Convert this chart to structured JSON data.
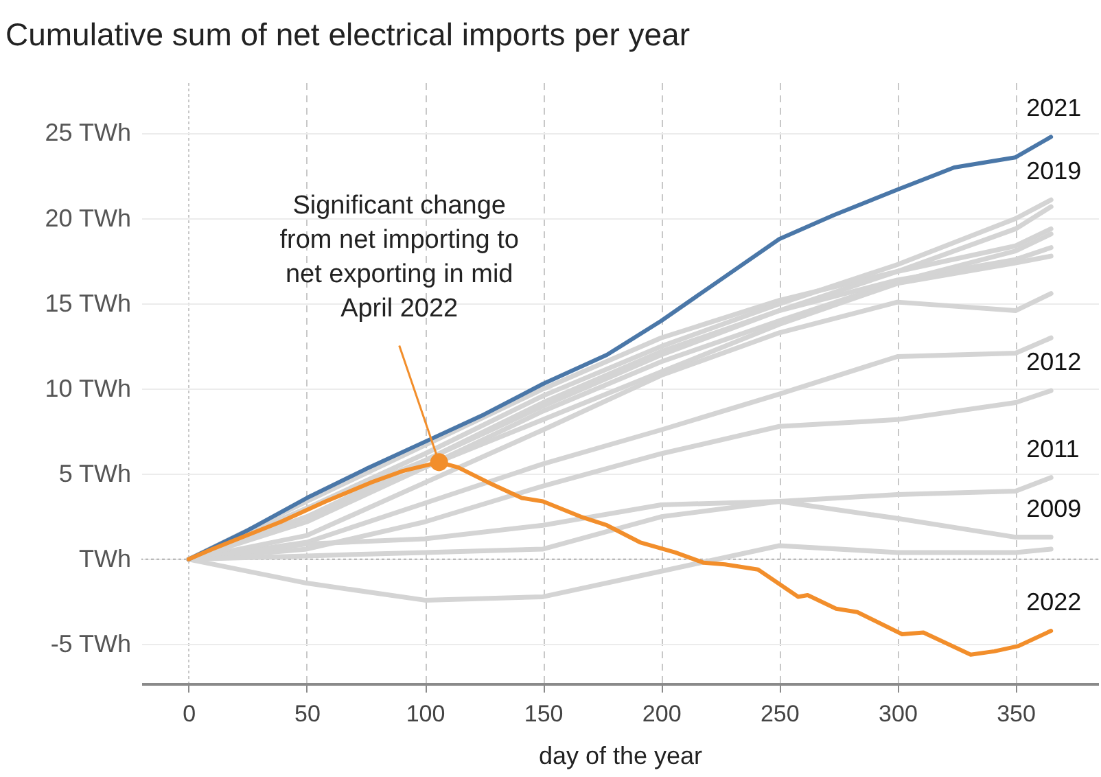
{
  "chart_data": {
    "type": "line",
    "title": "Cumulative sum of net electrical imports per year",
    "xlabel": "day of the year",
    "x": [
      0,
      50,
      100,
      150,
      200,
      250,
      300,
      350,
      365
    ],
    "xlim": [
      -20,
      385
    ],
    "xticks": [
      0,
      50,
      100,
      150,
      200,
      250,
      300,
      350
    ],
    "ylim": [
      -7.3,
      28
    ],
    "yticks": [
      {
        "value": -5,
        "label": "-5 TWh"
      },
      {
        "value": 0,
        "label": "TWh"
      },
      {
        "value": 5,
        "label": "5 TWh"
      },
      {
        "value": 10,
        "label": "10 TWh"
      },
      {
        "value": 15,
        "label": "15 TWh"
      },
      {
        "value": 20,
        "label": "20 TWh"
      },
      {
        "value": 25,
        "label": "25 TWh"
      }
    ],
    "grid": true,
    "ref_lines": [
      {
        "axis": "y",
        "value": 0,
        "color": "#b0b0b0",
        "line_style": "dotted"
      }
    ],
    "series": [
      {
        "color": "#d4d4d4",
        "values": [
          0,
          2.5,
          5.8,
          9.2,
          12.2,
          14.6,
          16.9,
          19.4,
          20.7
        ]
      },
      {
        "color": "#d4d4d4",
        "values": [
          0,
          3.4,
          6.7,
          10.0,
          13.0,
          15.2,
          16.9,
          18.4,
          19.4
        ]
      },
      {
        "color": "#d4d4d4",
        "values": [
          0,
          2.5,
          5.4,
          8.7,
          11.6,
          14.0,
          16.3,
          18.1,
          19.1
        ]
      },
      {
        "color": "#d4d4d4",
        "values": [
          0,
          3.0,
          5.8,
          9.0,
          12.0,
          14.6,
          16.4,
          17.6,
          18.3
        ]
      },
      {
        "color": "#d4d4d4",
        "values": [
          0,
          2.2,
          5.4,
          8.2,
          11.0,
          13.8,
          16.2,
          17.4,
          17.8
        ]
      },
      {
        "color": "#d4d4d4",
        "values": [
          0,
          1.4,
          4.5,
          7.6,
          10.8,
          13.3,
          15.1,
          14.6,
          15.6
        ]
      },
      {
        "color": "#d4d4d4",
        "values": [
          0,
          1.0,
          3.3,
          5.6,
          7.6,
          9.7,
          11.9,
          12.1,
          13.0
        ]
      },
      {
        "color": "#d4d4d4",
        "values": [
          0,
          -1.4,
          -2.4,
          -2.2,
          -0.7,
          0.8,
          0.4,
          0.4,
          0.6
        ]
      },
      {
        "name": "2019",
        "color": "#d4d4d4",
        "values": [
          0,
          3.0,
          6.2,
          9.6,
          12.5,
          15.0,
          17.3,
          20.0,
          21.1
        ]
      },
      {
        "name": "2012",
        "color": "#d4d4d4",
        "values": [
          0,
          0.6,
          2.2,
          4.3,
          6.2,
          7.8,
          8.2,
          9.2,
          9.9
        ]
      },
      {
        "name": "2011",
        "color": "#d4d4d4",
        "values": [
          0,
          0.9,
          1.2,
          2.0,
          3.2,
          3.4,
          3.8,
          4.0,
          4.8
        ]
      },
      {
        "name": "2009",
        "color": "#d4d4d4",
        "values": [
          0,
          0.2,
          0.4,
          0.6,
          2.5,
          3.4,
          2.4,
          1.3,
          1.3
        ]
      },
      {
        "name": "2021",
        "color": "#4a77a8",
        "x": [
          0,
          25,
          50,
          75,
          100,
          125,
          150,
          177,
          200,
          225,
          250,
          273,
          300,
          324,
          350,
          365
        ],
        "values": [
          0,
          1.7,
          3.6,
          5.3,
          6.9,
          8.5,
          10.3,
          12.0,
          14.0,
          16.4,
          18.8,
          20.2,
          21.7,
          23.0,
          23.6,
          24.8
        ]
      },
      {
        "name": "2022",
        "color": "#f28e2b",
        "x": [
          0,
          10,
          39,
          58,
          77,
          91,
          106,
          114,
          127,
          141,
          150,
          166,
          177,
          191,
          206,
          218,
          227,
          241,
          258,
          262,
          274,
          283,
          302,
          311,
          331,
          341,
          351,
          365
        ],
        "values": [
          0,
          0.6,
          2.2,
          3.4,
          4.5,
          5.2,
          5.7,
          5.4,
          4.5,
          3.6,
          3.4,
          2.5,
          2.0,
          1.0,
          0.4,
          -0.2,
          -0.3,
          -0.6,
          -2.2,
          -2.1,
          -2.9,
          -3.1,
          -4.4,
          -4.3,
          -5.6,
          -5.4,
          -5.1,
          -4.2
        ]
      }
    ],
    "annotations": [
      {
        "text": "Significant change from net importing to net exporting in mid April 2022",
        "x": 106,
        "y": 5.7
      }
    ]
  }
}
